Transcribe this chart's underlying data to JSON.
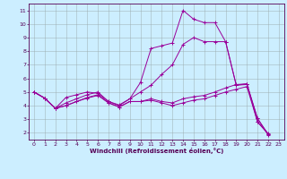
{
  "xlabel": "Windchill (Refroidissement éolien,°C)",
  "background_color": "#cceeff",
  "line_color": "#990099",
  "xlim": [
    -0.5,
    23.5
  ],
  "ylim": [
    1.5,
    11.5
  ],
  "yticks": [
    2,
    3,
    4,
    5,
    6,
    7,
    8,
    9,
    10,
    11
  ],
  "xticks": [
    0,
    1,
    2,
    3,
    4,
    5,
    6,
    7,
    8,
    9,
    10,
    11,
    12,
    13,
    14,
    15,
    16,
    17,
    18,
    19,
    20,
    21,
    22,
    23
  ],
  "lines": [
    {
      "x": [
        0,
        1,
        2,
        3,
        4,
        5,
        6,
        7,
        8,
        9,
        10,
        11,
        12,
        13,
        14,
        15,
        16,
        17,
        18,
        19,
        20,
        21,
        22
      ],
      "y": [
        5.0,
        4.55,
        3.8,
        4.6,
        4.8,
        5.0,
        4.9,
        4.3,
        4.0,
        4.5,
        5.7,
        8.2,
        8.4,
        8.6,
        11.0,
        10.35,
        10.1,
        10.1,
        8.7,
        5.5,
        5.6,
        3.05,
        1.85
      ]
    },
    {
      "x": [
        0,
        1,
        2,
        3,
        4,
        5,
        6,
        7,
        8,
        9,
        10,
        11,
        12,
        13,
        14,
        15,
        16,
        17,
        18,
        19,
        20,
        21,
        22
      ],
      "y": [
        5.0,
        4.55,
        3.8,
        4.2,
        4.5,
        4.8,
        5.0,
        4.3,
        4.05,
        4.5,
        5.0,
        5.5,
        6.3,
        7.0,
        8.5,
        9.0,
        8.7,
        8.7,
        8.7,
        5.5,
        5.55,
        3.05,
        1.9
      ]
    },
    {
      "x": [
        0,
        1,
        2,
        3,
        4,
        5,
        6,
        7,
        8,
        9,
        10,
        11,
        12,
        13,
        14,
        15,
        16,
        17,
        18,
        19,
        20,
        21,
        22
      ],
      "y": [
        5.0,
        4.55,
        3.8,
        4.0,
        4.3,
        4.6,
        4.8,
        4.2,
        3.9,
        4.3,
        4.3,
        4.5,
        4.3,
        4.2,
        4.5,
        4.65,
        4.75,
        5.0,
        5.3,
        5.55,
        5.6,
        2.8,
        1.9
      ]
    },
    {
      "x": [
        0,
        1,
        2,
        3,
        4,
        5,
        6,
        7,
        8,
        9,
        10,
        11,
        12,
        13,
        14,
        15,
        16,
        17,
        18,
        19,
        20,
        21,
        22
      ],
      "y": [
        5.0,
        4.55,
        3.8,
        4.0,
        4.3,
        4.55,
        4.75,
        4.2,
        3.9,
        4.3,
        4.3,
        4.4,
        4.2,
        4.0,
        4.2,
        4.4,
        4.5,
        4.75,
        5.0,
        5.2,
        5.4,
        2.8,
        1.95
      ]
    }
  ]
}
